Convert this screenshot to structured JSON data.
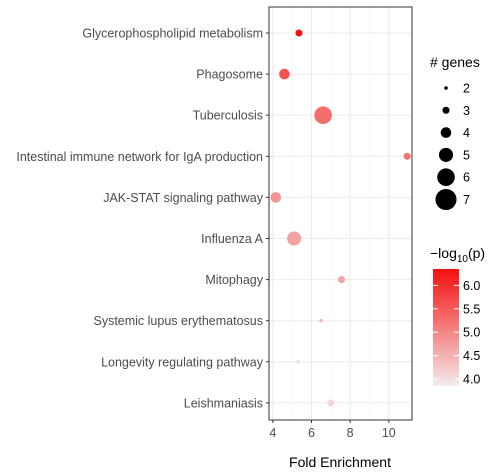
{
  "chart_data": {
    "type": "scatter",
    "title": "",
    "xlabel": "Fold Enrichment",
    "ylabel": "",
    "xlim": [
      3.8,
      11.2
    ],
    "x_ticks": [
      4,
      6,
      8,
      10
    ],
    "grid": true,
    "categories": [
      "Glycerophospholipid metabolism",
      "Phagosome",
      "Tuberculosis",
      "Intestinal immune network for IgA production",
      "JAK-STAT signaling pathway",
      "Influenza A",
      "Mitophagy",
      "Systemic lupus erythematosus",
      "Longevity regulating pathway",
      "Leishmaniasis"
    ],
    "points": [
      {
        "category": "Glycerophospholipid metabolism",
        "fold_enrichment": 5.35,
        "genes": 3,
        "neg_log10_p": 6.3
      },
      {
        "category": "Phagosome",
        "fold_enrichment": 4.6,
        "genes": 4,
        "neg_log10_p": 5.6
      },
      {
        "category": "Tuberculosis",
        "fold_enrichment": 6.6,
        "genes": 6,
        "neg_log10_p": 5.3
      },
      {
        "category": "Intestinal immune network for IgA production",
        "fold_enrichment": 10.95,
        "genes": 3,
        "neg_log10_p": 5.2
      },
      {
        "category": "JAK-STAT signaling pathway",
        "fold_enrichment": 4.15,
        "genes": 4,
        "neg_log10_p": 4.85
      },
      {
        "category": "Influenza A",
        "fold_enrichment": 5.1,
        "genes": 5,
        "neg_log10_p": 4.7
      },
      {
        "category": "Mitophagy",
        "fold_enrichment": 7.55,
        "genes": 3,
        "neg_log10_p": 4.65
      },
      {
        "category": "Systemic lupus erythematosus",
        "fold_enrichment": 6.5,
        "genes": 2,
        "neg_log10_p": 4.4
      },
      {
        "category": "Longevity regulating pathway",
        "fold_enrichment": 5.3,
        "genes": 2,
        "neg_log10_p": 4.05
      },
      {
        "category": "Leishmaniasis",
        "fold_enrichment": 7.0,
        "genes": 3,
        "neg_log10_p": 4.1
      }
    ],
    "size_legend": {
      "title": "# genes",
      "values": [
        2,
        3,
        4,
        5,
        6,
        7
      ],
      "labels": [
        "2",
        "3",
        "4",
        "5",
        "6",
        "7"
      ]
    },
    "color_legend": {
      "title_prefix": "−log",
      "title_sub": "10",
      "title_suffix": "(p)",
      "range": [
        3.85,
        6.35
      ],
      "ticks": [
        4.0,
        4.5,
        5.0,
        5.5,
        6.0
      ],
      "tick_labels": [
        "4.0",
        "4.5",
        "5.0",
        "5.5",
        "6.0"
      ],
      "color_low": "#f4ecec",
      "color_high": "#f50f0f"
    },
    "legend_position": "right"
  }
}
